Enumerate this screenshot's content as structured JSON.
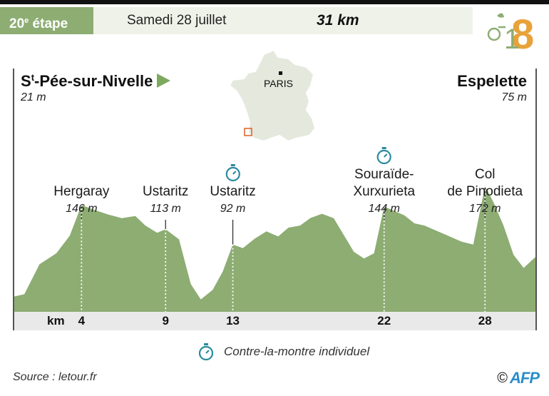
{
  "header": {
    "stage_number": "20",
    "stage_suffix": "e",
    "stage_word": "étape",
    "date": "Samedi 28 juillet",
    "distance": "31 km"
  },
  "route": {
    "start_prefix": "S",
    "start_sup": "t",
    "start_rest": "-Pée-sur-Nivelle",
    "start_alt": "21 m",
    "end_name": "Espelette",
    "end_alt": "75 m"
  },
  "map": {
    "city_label": "PARIS"
  },
  "waypoints": [
    {
      "name_lines": [
        "Hergaray"
      ],
      "alt": "146 m",
      "km": 4,
      "timer": false
    },
    {
      "name_lines": [
        "Ustaritz"
      ],
      "alt": "113 m",
      "km": 9,
      "timer": false
    },
    {
      "name_lines": [
        "Ustaritz"
      ],
      "alt": "92 m",
      "km": 13,
      "timer": true
    },
    {
      "name_lines": [
        "Souraïde-",
        "Xurxurieta"
      ],
      "alt": "144 m",
      "km": 22,
      "timer": true
    },
    {
      "name_lines": [
        "Col",
        "de Pinodieta"
      ],
      "alt": "172 m",
      "km": 28,
      "timer": false
    }
  ],
  "axis": {
    "title": "km"
  },
  "legend": {
    "label": "Contre-la-montre individuel"
  },
  "footer": {
    "source": "Source : letour.fr",
    "copyright": "©",
    "agency": "AFP"
  },
  "colors": {
    "profile_fill": "#8dad73",
    "accent_green": "#7da95f",
    "timer_teal": "#2a8a9e",
    "logo_orange": "#e8a23a",
    "map_fill": "#e4e8dd"
  },
  "chart_data": {
    "type": "area",
    "title": "",
    "xlabel": "km",
    "ylabel": "",
    "xlim": [
      0,
      31
    ],
    "ylim": [
      0,
      200
    ],
    "x_ticks": [
      4,
      9,
      13,
      22,
      28
    ],
    "series": [
      {
        "x": [
          0,
          0.6,
          1.5,
          2.5,
          3.3,
          4,
          4.8,
          5.6,
          6.4,
          7.2,
          7.8,
          8.5,
          9,
          9.8,
          10.5,
          11.1,
          11.8,
          12.4,
          13,
          13.6,
          14.3,
          15,
          15.7,
          16.3,
          17,
          17.6,
          18.3,
          19,
          19.6,
          20.2,
          20.8,
          21.4,
          22,
          22.6,
          23.2,
          23.8,
          24.4,
          25,
          25.8,
          26.6,
          27.3,
          28,
          28.5,
          29.1,
          29.7,
          30.3,
          31
        ],
        "y": [
          21,
          24,
          65,
          80,
          104,
          146,
          139,
          133,
          128,
          131,
          118,
          108,
          113,
          99,
          38,
          17,
          30,
          55,
          92,
          87,
          100,
          110,
          103,
          115,
          118,
          128,
          134,
          128,
          105,
          82,
          73,
          80,
          144,
          138,
          132,
          121,
          118,
          112,
          104,
          96,
          92,
          172,
          150,
          118,
          78,
          60,
          75
        ]
      }
    ]
  }
}
